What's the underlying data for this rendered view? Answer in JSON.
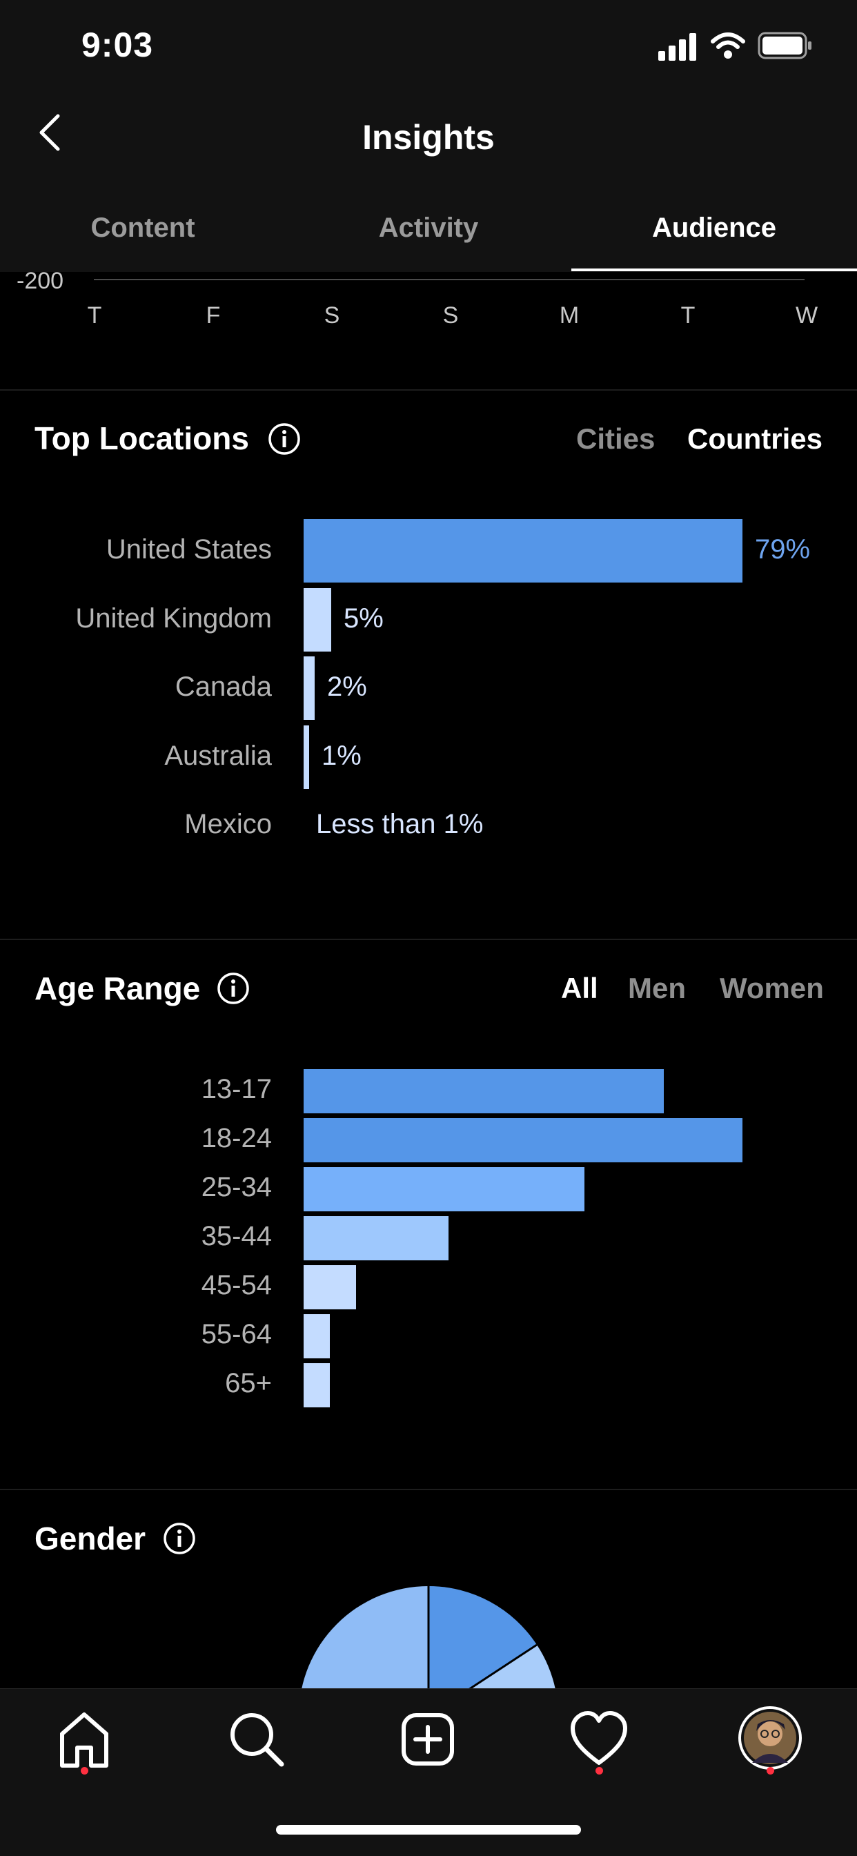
{
  "status_bar": {
    "time": "9:03"
  },
  "header": {
    "title": "Insights"
  },
  "tabs": [
    {
      "label": "Content",
      "active": false
    },
    {
      "label": "Activity",
      "active": false
    },
    {
      "label": "Audience",
      "active": true
    }
  ],
  "activity_chart": {
    "y_tick": "-200",
    "days": [
      "T",
      "F",
      "S",
      "S",
      "M",
      "T",
      "W"
    ]
  },
  "top_locations": {
    "title": "Top Locations",
    "toggles": [
      {
        "label": "Cities",
        "active": false
      },
      {
        "label": "Countries",
        "active": true
      }
    ],
    "rows": [
      {
        "label": "United States",
        "value": "79%",
        "percent": 79
      },
      {
        "label": "United Kingdom",
        "value": "5%",
        "percent": 5
      },
      {
        "label": "Canada",
        "value": "2%",
        "percent": 2
      },
      {
        "label": "Australia",
        "value": "1%",
        "percent": 1
      },
      {
        "label": "Mexico",
        "value": "Less than 1%",
        "percent": 0
      }
    ]
  },
  "age_range": {
    "title": "Age Range",
    "toggles": [
      {
        "label": "All",
        "active": true
      },
      {
        "label": "Men",
        "active": false
      },
      {
        "label": "Women",
        "active": false
      }
    ],
    "rows": [
      {
        "label": "13-17",
        "relative": 0.82
      },
      {
        "label": "18-24",
        "relative": 1.0
      },
      {
        "label": "25-34",
        "relative": 0.64
      },
      {
        "label": "35-44",
        "relative": 0.33
      },
      {
        "label": "45-54",
        "relative": 0.12
      },
      {
        "label": "55-64",
        "relative": 0.06
      },
      {
        "label": "65+",
        "relative": 0.06
      }
    ]
  },
  "gender": {
    "title": "Gender"
  },
  "colors": {
    "bar_primary": "#5596e8",
    "bar_light": "#c4dcff",
    "value_highlight": "#6ea4ef",
    "notification_dot": "#ff3040"
  },
  "bottom_nav": {
    "items": [
      "home-icon",
      "search-icon",
      "new-post-icon",
      "activity-heart-icon",
      "profile-avatar"
    ]
  }
}
